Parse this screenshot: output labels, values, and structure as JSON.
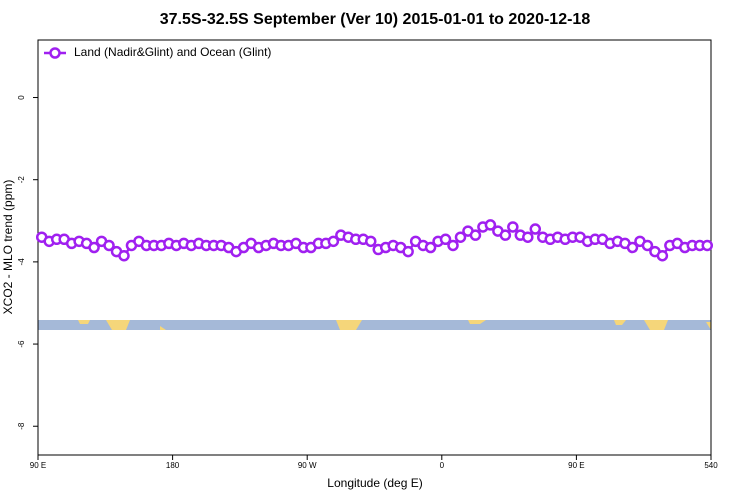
{
  "chart_data": {
    "type": "line",
    "title": "37.5S-32.5S September (Ver 10)   2015-01-01 to 2020-12-18",
    "xlabel": "Longitude (deg E)",
    "ylabel": "XCO2 - MLO trend (ppm)",
    "xlim": [
      90,
      540
    ],
    "xticks": [
      {
        "value": 90,
        "label": "90 E"
      },
      180,
      {
        "value": 270,
        "label": "90 W"
      },
      {
        "value": 360,
        "label": "0"
      },
      {
        "value": 450,
        "label": "90 E"
      },
      540
    ],
    "ylim": [
      -8.7,
      1.4
    ],
    "yticks": [
      0,
      -2,
      -4,
      -6,
      -8
    ],
    "legend": "top-left",
    "x": [
      92.5,
      97.5,
      102.5,
      107.5,
      112.5,
      117.5,
      122.5,
      127.5,
      132.5,
      137.5,
      142.5,
      147.5,
      152.5,
      157.5,
      162.5,
      167.5,
      172.5,
      177.5,
      182.5,
      187.5,
      192.5,
      197.5,
      202.5,
      207.5,
      212.5,
      217.5,
      222.5,
      227.5,
      232.5,
      237.5,
      242.5,
      247.5,
      252.5,
      257.5,
      262.5,
      267.5,
      272.5,
      277.5,
      282.5,
      287.5,
      292.5,
      297.5,
      302.5,
      307.5,
      312.5,
      317.5,
      322.5,
      327.5,
      332.5,
      337.5,
      342.5,
      347.5,
      352.5,
      357.5,
      362.5,
      367.5,
      372.5,
      377.5,
      382.5,
      387.5,
      392.5,
      397.5,
      402.5,
      407.5,
      412.5,
      417.5,
      422.5,
      427.5,
      432.5,
      437.5,
      442.5,
      447.5,
      452.5,
      457.5,
      462.5,
      467.5,
      472.5,
      477.5,
      482.5,
      487.5,
      492.5,
      497.5,
      502.5,
      507.5,
      512.5,
      517.5,
      522.5,
      527.5,
      532.5,
      537.5
    ],
    "series": [
      {
        "name": "Land (Nadir&Glint) and Ocean (Glint)",
        "color": "#a020f0",
        "values": [
          -3.4,
          -3.5,
          -3.45,
          -3.45,
          -3.55,
          -3.5,
          -3.55,
          -3.65,
          -3.5,
          -3.6,
          -3.75,
          -3.85,
          -3.6,
          -3.5,
          -3.6,
          -3.6,
          -3.6,
          -3.55,
          -3.6,
          -3.55,
          -3.6,
          -3.55,
          -3.6,
          -3.6,
          -3.6,
          -3.65,
          -3.75,
          -3.65,
          -3.55,
          -3.65,
          -3.6,
          -3.55,
          -3.6,
          -3.6,
          -3.55,
          -3.65,
          -3.65,
          -3.55,
          -3.55,
          -3.5,
          -3.35,
          -3.4,
          -3.45,
          -3.45,
          -3.5,
          -3.7,
          -3.65,
          -3.6,
          -3.65,
          -3.75,
          -3.5,
          -3.6,
          -3.65,
          -3.5,
          -3.45,
          -3.6,
          -3.4,
          -3.25,
          -3.35,
          -3.15,
          -3.1,
          -3.25,
          -3.35,
          -3.15,
          -3.35,
          -3.4,
          -3.2,
          -3.4,
          -3.45,
          -3.4,
          -3.45,
          -3.4,
          -3.4,
          -3.5,
          -3.45,
          -3.45,
          -3.55,
          -3.5,
          -3.55,
          -3.65,
          -3.5,
          -3.6,
          -3.75,
          -3.85,
          -3.6,
          -3.55,
          -3.65,
          -3.6,
          -3.6,
          -3.6
        ]
      }
    ]
  }
}
